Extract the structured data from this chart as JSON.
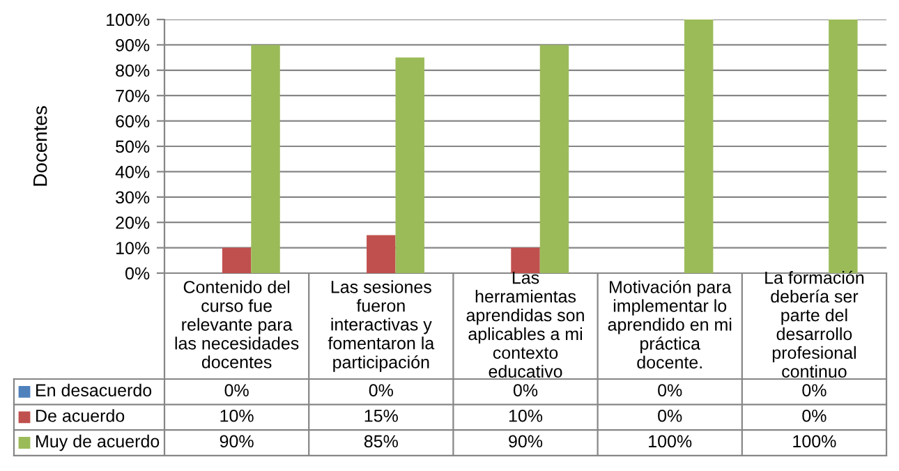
{
  "chart_data": {
    "type": "bar",
    "ylabel": "Docentes",
    "categories": [
      "Contenido del curso fue relevante para las necesidades docentes",
      "Las sesiones fueron interactivas y fomentaron la participación",
      "Las herramientas aprendidas son aplicables a mi contexto educativo",
      "Motivación para implementar lo aprendido en mi práctica docente.",
      "La formación debería ser parte del desarrollo profesional continuo"
    ],
    "series": [
      {
        "name": "En desacuerdo",
        "color": "#4f81bd",
        "values": [
          0,
          0,
          0,
          0,
          0
        ],
        "value_labels": [
          "0%",
          "0%",
          "0%",
          "0%",
          "0%"
        ]
      },
      {
        "name": "De acuerdo",
        "color": "#c0504d",
        "values": [
          10,
          15,
          10,
          0,
          0
        ],
        "value_labels": [
          "10%",
          "15%",
          "10%",
          "0%",
          "0%"
        ]
      },
      {
        "name": "Muy de acuerdo",
        "color": "#9bbb59",
        "values": [
          90,
          85,
          90,
          100,
          100
        ],
        "value_labels": [
          "90%",
          "85%",
          "90%",
          "100%",
          "100%"
        ]
      }
    ],
    "ylim": [
      0,
      100
    ],
    "yticks": [
      {
        "value": 0,
        "label": "0%"
      },
      {
        "value": 10,
        "label": "10%"
      },
      {
        "value": 20,
        "label": "20%"
      },
      {
        "value": 30,
        "label": "30%"
      },
      {
        "value": 40,
        "label": "40%"
      },
      {
        "value": 50,
        "label": "50%"
      },
      {
        "value": 60,
        "label": "60%"
      },
      {
        "value": 70,
        "label": "70%"
      },
      {
        "value": 80,
        "label": "80%"
      },
      {
        "value": 90,
        "label": "90%"
      },
      {
        "value": 100,
        "label": "100%"
      }
    ],
    "grid": "y",
    "legend": "bottom"
  }
}
